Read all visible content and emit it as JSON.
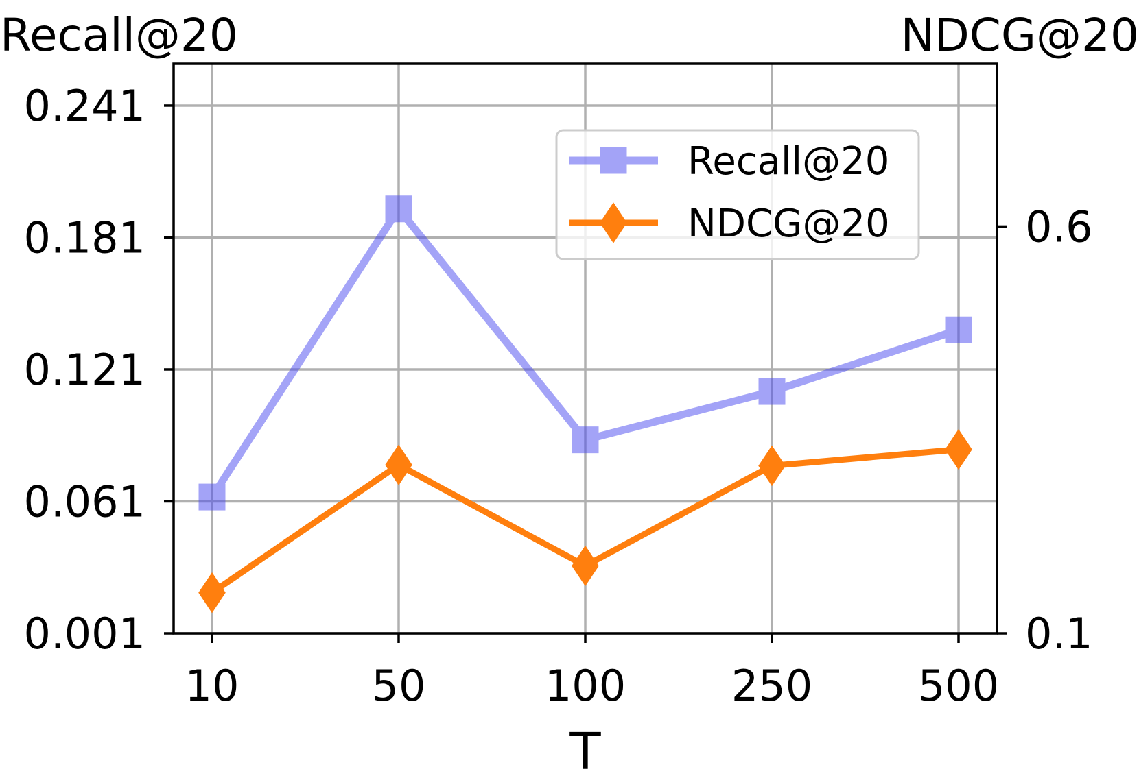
{
  "chart_data": {
    "type": "line",
    "xlabel": "T",
    "categories": [
      "10",
      "50",
      "100",
      "250",
      "500"
    ],
    "left_axis": {
      "title": "Recall@20",
      "ylim": [
        0.001,
        0.26
      ],
      "ticks": [
        0.001,
        0.061,
        0.121,
        0.181,
        0.241
      ],
      "tick_labels": [
        "0.001",
        "0.061",
        "0.121",
        "0.181",
        "0.241"
      ]
    },
    "right_axis": {
      "title": "NDCG@20",
      "ylim": [
        0.1,
        0.8
      ],
      "ticks": [
        0.1,
        0.6
      ],
      "tick_labels": [
        "0.1",
        "0.6"
      ]
    },
    "series": [
      {
        "name": "Recall@20",
        "axis": "left",
        "values": [
          0.063,
          0.194,
          0.089,
          0.111,
          0.139
        ],
        "color": "#4a4af0",
        "marker": "square",
        "opacity": 0.5
      },
      {
        "name": "NDCG@20",
        "axis": "right",
        "values": [
          0.15,
          0.307,
          0.183,
          0.306,
          0.326
        ],
        "color": "#ff7f0e",
        "marker": "diamond",
        "opacity": 1
      }
    ],
    "legend": {
      "position": "top-right",
      "entries": [
        "Recall@20",
        "NDCG@20"
      ]
    },
    "grid": true
  }
}
